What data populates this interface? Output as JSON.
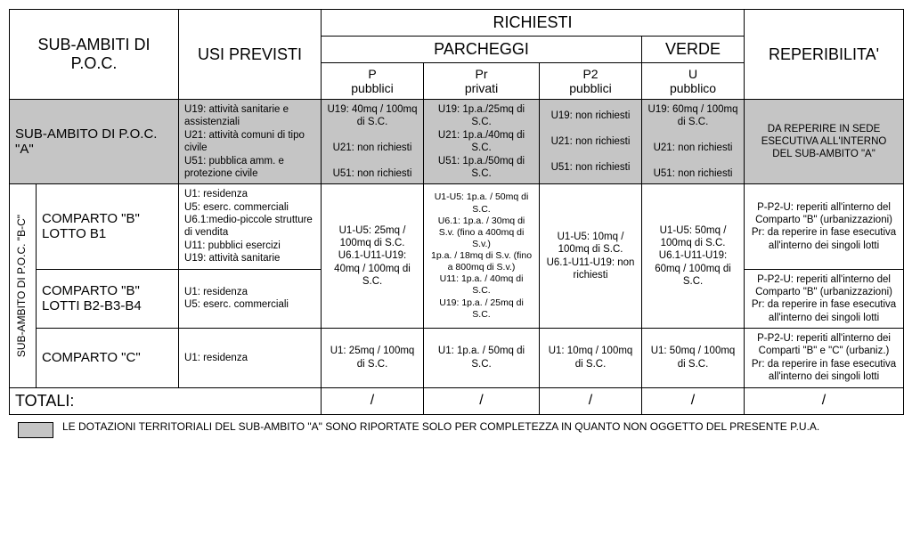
{
  "headers": {
    "subambiti": "SUB-AMBITI DI P.O.C.",
    "usi": "USI PREVISTI",
    "richiesti": "RICHIESTI",
    "parcheggi": "PARCHEGGI",
    "verde": "VERDE",
    "reperibilita": "REPERIBILITA'",
    "p1": "P",
    "p1b": "pubblici",
    "pr": "Pr",
    "prb": "privati",
    "p2": "P2",
    "p2b": "pubblici",
    "u": "U",
    "ub": "pubblico"
  },
  "rowA": {
    "label": "SUB-AMBITO DI P.O.C. \"A\"",
    "usi": "U19: attività sanitarie e assistenziali\nU21: attività comuni di tipo civile\nU51: pubblica amm. e protezione civile",
    "p": "U19: 40mq / 100mq di S.C.\n\nU21: non richiesti\n\nU51: non richiesti",
    "pr": "U19: 1p.a./25mq di S.C.\nU21: 1p.a./40mq di S.C.\nU51: 1p.a./50mq di S.C.",
    "p2": "U19: non richiesti\n\nU21: non richiesti\n\nU51: non richiesti",
    "u": "U19: 60mq / 100mq di S.C.\n\nU21: non richiesti\n\nU51: non richiesti",
    "rep": "DA REPERIRE IN SEDE ESECUTIVA ALL'INTERNO DEL SUB-AMBITO \"A\""
  },
  "rowBC_label": "SUB-AMBITO DI P.O.C. \"B-C\"",
  "rowB1": {
    "label": "COMPARTO \"B\" LOTTO B1",
    "usi": "U1: residenza\nU5: eserc. commerciali\nU6.1:medio-piccole strutture di vendita\nU11: pubblici esercizi\nU19: attività sanitarie",
    "rep": "P-P2-U: reperiti all'interno del Comparto \"B\" (urbanizzazioni)\nPr: da reperire in fase esecutiva all'interno dei singoli lotti"
  },
  "rowB234": {
    "label": "COMPARTO \"B\" LOTTI B2-B3-B4",
    "usi": "U1: residenza\nU5: eserc. commerciali",
    "rep": "P-P2-U: reperiti all'interno del Comparto \"B\" (urbanizzazioni)\nPr: da reperire in fase esecutiva all'interno dei singoli lotti"
  },
  "merged_B": {
    "p": "U1-U5: 25mq / 100mq di S.C.\nU6.1-U11-U19: 40mq / 100mq di S.C.",
    "pr": "U1-U5: 1p.a. / 50mq di S.C.\nU6.1: 1p.a. / 30mq di S.v. (fino a 400mq di S.v.)\n1p.a. / 18mq di S.v. (fino a 800mq di S.v.)\nU11: 1p.a. / 40mq di S.C.\nU19: 1p.a. / 25mq di S.C.",
    "p2": "U1-U5: 10mq / 100mq di S.C.\nU6.1-U11-U19: non richiesti",
    "u": "U1-U5: 50mq / 100mq di S.C.\nU6.1-U11-U19: 60mq / 100mq di S.C."
  },
  "rowC": {
    "label": "COMPARTO \"C\"",
    "usi": "U1: residenza",
    "p": "U1: 25mq / 100mq di S.C.",
    "pr": "U1: 1p.a. / 50mq di S.C.",
    "p2": "U1: 10mq / 100mq di S.C.",
    "u": "U1: 50mq / 100mq di S.C.",
    "rep": "P-P2-U: reperiti all'interno dei Comparti \"B\" e \"C\" (urbaniz.)\nPr: da reperire in fase esecutiva all'interno dei singoli lotti"
  },
  "totals": {
    "label": "TOTALI:",
    "slash": "/"
  },
  "footnote": "LE DOTAZIONI TERRITORIALI DEL SUB-AMBITO \"A\" SONO RIPORTATE SOLO PER COMPLETEZZA IN QUANTO NON OGGETTO DEL PRESENTE P.U.A."
}
